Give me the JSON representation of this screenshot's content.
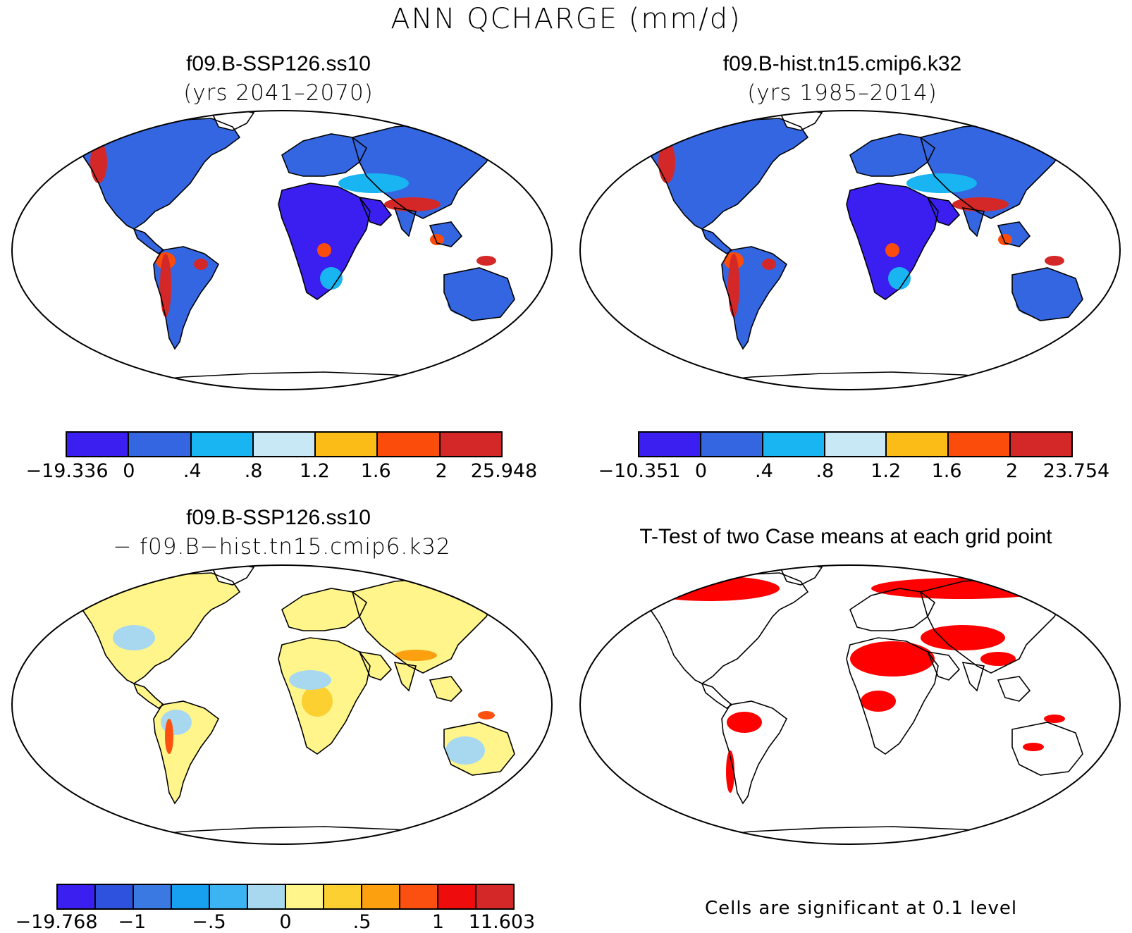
{
  "title": "ANN QCHARGE (mm/d)",
  "panels": [
    {
      "id": "top-left",
      "title": "f09.B-SSP126.ss10",
      "subtitle": "(yrs 2041–2070)",
      "colorbar": {
        "colors": [
          "#3a1ff0",
          "#3366e0",
          "#19b4f2",
          "#c8e8f6",
          "#fcbc18",
          "#fc4c0c",
          "#d42828"
        ],
        "labels": [
          "−19.336",
          "0",
          ".4",
          ".8",
          "1.2",
          "1.6",
          "2",
          "25.948"
        ]
      }
    },
    {
      "id": "top-right",
      "title": "f09.B-hist.tn15.cmip6.k32",
      "subtitle": "(yrs 1985–2014)",
      "colorbar": {
        "colors": [
          "#3a1ff0",
          "#3366e0",
          "#19b4f2",
          "#c8e8f6",
          "#fcbc18",
          "#fc4c0c",
          "#d42828"
        ],
        "labels": [
          "−10.351",
          "0",
          ".4",
          ".8",
          "1.2",
          "1.6",
          "2",
          "23.754"
        ]
      }
    },
    {
      "id": "bottom-left",
      "title": "f09.B-SSP126.ss10",
      "subtitle": "− f09.B−hist.tn15.cmip6.k32",
      "colorbar": {
        "colors": [
          "#3a1ff0",
          "#2e52de",
          "#3a78e2",
          "#17a0f0",
          "#3cb4f4",
          "#a8d8f0",
          "#fff58a",
          "#fcd030",
          "#fca010",
          "#fc5010",
          "#ee0c0c",
          "#d42828"
        ],
        "labels": [
          "−19.768",
          "−1",
          "−.5",
          "0",
          ".5",
          "1",
          "11.603"
        ]
      }
    },
    {
      "id": "bottom-right",
      "title": "T-Test of two Case means at each grid point",
      "subtitle": "",
      "footnote": "Cells are significant at 0.1 level"
    }
  ],
  "colors": {
    "land_outline": "#000000",
    "significant": "#ff0000",
    "background": "#ffffff"
  }
}
